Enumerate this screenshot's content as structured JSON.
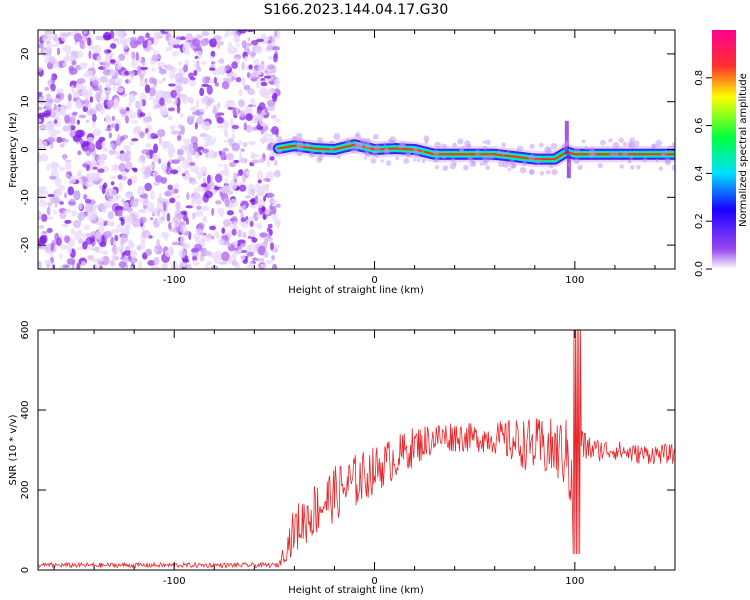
{
  "title": "S166.2023.144.04.17.G30",
  "chart_data": [
    {
      "type": "heatmap",
      "xlabel": "Height of straight line (km)",
      "ylabel": "Frequency (Hz)",
      "xlim": [
        -168,
        150
      ],
      "ylim": [
        -25,
        25
      ],
      "xticks": [
        -100,
        0,
        100
      ],
      "yticks": [
        -20,
        -10,
        0,
        10,
        20
      ],
      "noise_region_x": [
        -168,
        -48
      ],
      "ridge": {
        "x": [
          -48,
          -40,
          -30,
          -20,
          -10,
          0,
          10,
          20,
          30,
          40,
          50,
          60,
          70,
          80,
          90,
          96,
          100,
          110,
          120,
          130,
          140,
          150
        ],
        "freq": [
          0.2,
          0.8,
          0.2,
          0.0,
          1.0,
          0.0,
          0.2,
          0.0,
          -1.0,
          -1.0,
          -1.0,
          -1.0,
          -1.5,
          -2.0,
          -2.0,
          -0.5,
          -1.0,
          -1.0,
          -1.0,
          -1.0,
          -1.0,
          -1.0
        ]
      },
      "colorbar": {
        "label": "Normalized spectral amplitude",
        "ticks": [
          0.0,
          0.2,
          0.4,
          0.6,
          0.8
        ],
        "range": [
          0,
          1
        ],
        "colors": [
          "#f2e6fb",
          "#7a1ae8",
          "#1a00ff",
          "#00e0ff",
          "#00ff40",
          "#ffff00",
          "#ff2020",
          "#ff0080"
        ]
      }
    },
    {
      "type": "line",
      "xlabel": "Height of straight line (km)",
      "ylabel": "SNR (10 * v/v)",
      "xlim": [
        -168,
        150
      ],
      "ylim": [
        0,
        600
      ],
      "xticks": [
        -100,
        0,
        100
      ],
      "yticks": [
        0,
        200,
        400,
        600
      ],
      "color": "#e8262a",
      "envelope": {
        "x": [
          -168,
          -120,
          -48,
          -40,
          -30,
          -20,
          -10,
          0,
          10,
          20,
          30,
          40,
          50,
          60,
          70,
          80,
          90,
          96,
          100,
          102,
          104,
          110,
          120,
          130,
          140,
          150
        ],
        "y": [
          12,
          12,
          12,
          100,
          150,
          190,
          220,
          250,
          280,
          310,
          330,
          335,
          330,
          330,
          320,
          310,
          300,
          290,
          300,
          400,
          310,
          300,
          300,
          290,
          290,
          290
        ],
        "noise": [
          6,
          6,
          6,
          60,
          70,
          70,
          70,
          60,
          55,
          50,
          40,
          40,
          35,
          40,
          60,
          70,
          80,
          90,
          280,
          200,
          40,
          30,
          25,
          25,
          25,
          25
        ]
      }
    }
  ]
}
